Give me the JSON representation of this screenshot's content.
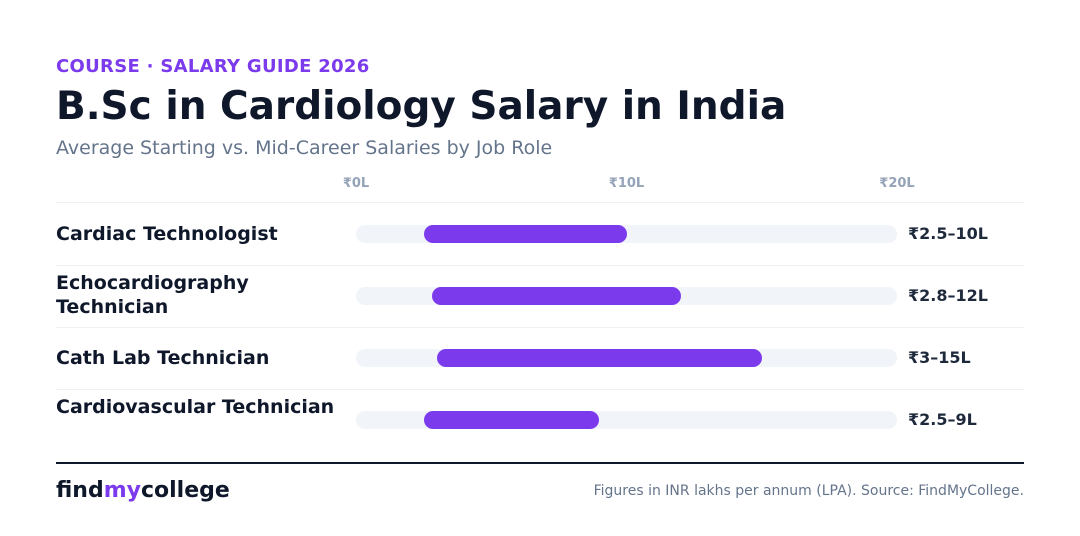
{
  "header": {
    "eyebrow": "COURSE · SALARY GUIDE 2026",
    "title": "B.Sc in Cardiology Salary in India",
    "subtitle": "Average Starting vs. Mid-Career Salaries by Job Role"
  },
  "colors": {
    "accent": "#7c3aed",
    "track": "#f1f4f9",
    "text": "#0f172a",
    "muted": "#64748b"
  },
  "chart_data": {
    "type": "bar",
    "orientation": "horizontal-range",
    "title": "B.Sc in Cardiology Salary in India",
    "subtitle": "Average Starting vs. Mid-Career Salaries by Job Role",
    "x_ticks": [
      "₹0L",
      "₹10L",
      "₹20L"
    ],
    "x_tick_values": [
      0,
      10,
      20
    ],
    "xlim": [
      0,
      20
    ],
    "unit": "INR lakhs per annum",
    "grid": false,
    "legend": "none",
    "categories": [
      "Cardiac Technologist",
      "Echocardiography Technician",
      "Cath Lab Technician",
      "Cardiovascular Technician"
    ],
    "ranges": [
      {
        "min": 2.5,
        "max": 10,
        "label": "₹2.5–10L"
      },
      {
        "min": 2.8,
        "max": 12,
        "label": "₹2.8–12L"
      },
      {
        "min": 3,
        "max": 15,
        "label": "₹3–15L"
      },
      {
        "min": 2.5,
        "max": 9,
        "label": "₹2.5–9L"
      }
    ]
  },
  "footer": {
    "brand_part1": "find",
    "brand_part2": "my",
    "brand_part3": "college",
    "note": "Figures in INR lakhs per annum (LPA). Source: FindMyCollege."
  }
}
